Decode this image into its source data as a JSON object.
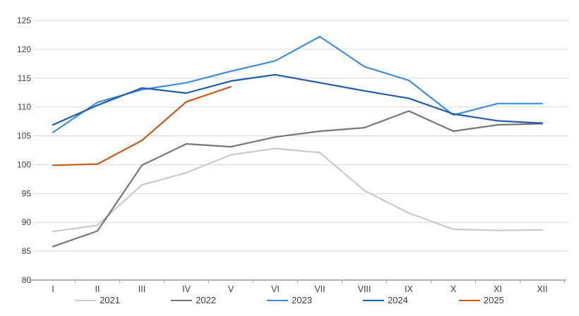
{
  "chart_data": {
    "type": "line",
    "title": "",
    "xlabel": "",
    "ylabel": "",
    "categories": [
      "I",
      "II",
      "III",
      "IV",
      "V",
      "VI",
      "VII",
      "VIII",
      "IX",
      "X",
      "XI",
      "XII"
    ],
    "y_axis": {
      "min": 80,
      "max": 125,
      "tick_step": 5
    },
    "grid": true,
    "legend_position": "bottom",
    "series": [
      {
        "name": "2021",
        "color": "#C9C9C9",
        "values": [
          88.4,
          89.5,
          96.5,
          98.6,
          101.7,
          102.8,
          102.1,
          95.5,
          91.6,
          88.8,
          88.6,
          88.7
        ]
      },
      {
        "name": "2022",
        "color": "#757575",
        "values": [
          85.8,
          88.5,
          99.9,
          103.6,
          103.1,
          104.8,
          105.8,
          106.4,
          109.3,
          105.8,
          106.9,
          107.1
        ]
      },
      {
        "name": "2023",
        "color": "#3E8EDE",
        "values": [
          105.6,
          110.8,
          113.0,
          114.2,
          116.2,
          118.0,
          122.2,
          117.0,
          114.6,
          108.6,
          110.6,
          110.6
        ]
      },
      {
        "name": "2024",
        "color": "#1F5CA9",
        "values": [
          106.9,
          110.3,
          113.3,
          112.4,
          114.5,
          115.6,
          114.2,
          112.8,
          111.5,
          108.8,
          107.6,
          107.2
        ]
      },
      {
        "name": "2025",
        "color": "#C75B16",
        "values": [
          99.9,
          100.1,
          104.2,
          110.9,
          113.5
        ]
      }
    ],
    "colors": {
      "gridline": "#D9D9D9",
      "axis": "#A6A6A6",
      "text": "#404040"
    }
  }
}
